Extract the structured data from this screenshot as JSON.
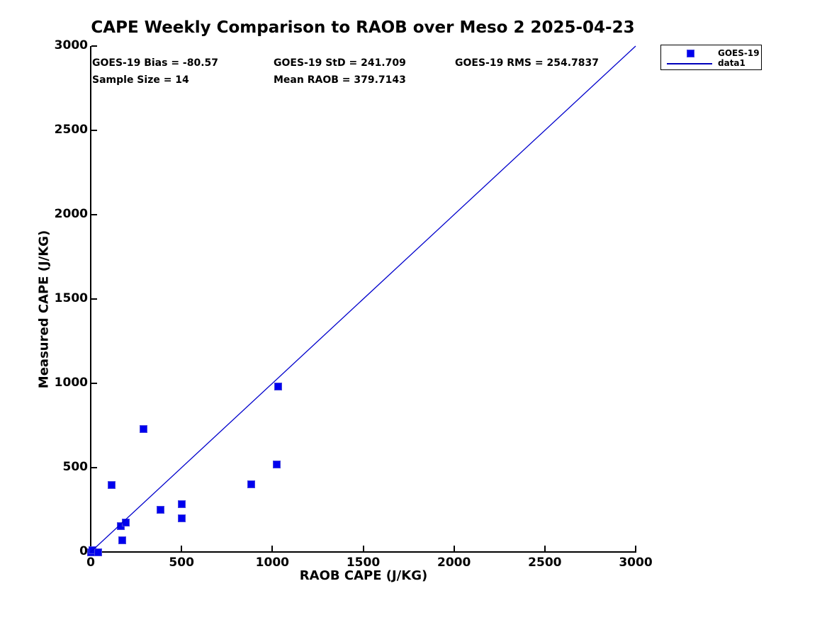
{
  "figure": {
    "title": "CAPE Weekly Comparison to RAOB over Meso 2 2025-04-23",
    "stats": {
      "bias": "GOES-19 Bias = -80.57",
      "std": "GOES-19 StD = 241.709",
      "rms": "GOES-19 RMS = 254.7837",
      "sample_size": "Sample Size = 14",
      "mean_raob": "Mean RAOB = 379.7143"
    },
    "legend": {
      "items": [
        {
          "label": "GOES-19",
          "symbol": "square-marker"
        },
        {
          "label": "data1",
          "symbol": "line"
        }
      ]
    }
  },
  "chart_data": {
    "type": "scatter",
    "title": "CAPE Weekly Comparison to RAOB over Meso 2 2025-04-23",
    "xlabel": "RAOB CAPE (J/KG)",
    "ylabel": "Measured CAPE (J/KG)",
    "xlim": [
      0,
      3000
    ],
    "ylim": [
      0,
      3000
    ],
    "x_ticks": [
      0,
      500,
      1000,
      1500,
      2000,
      2500,
      3000
    ],
    "y_ticks": [
      0,
      500,
      1000,
      1500,
      2000,
      2500,
      3000
    ],
    "grid": false,
    "legend_position": "outside-top-right",
    "series": [
      {
        "name": "GOES-19",
        "type": "scatter",
        "marker": "square",
        "color": "#0000EE",
        "points": [
          [
            0,
            0
          ],
          [
            10,
            10
          ],
          [
            40,
            0
          ],
          [
            115,
            395
          ],
          [
            165,
            155
          ],
          [
            195,
            175
          ],
          [
            175,
            70
          ],
          [
            290,
            730
          ],
          [
            385,
            250
          ],
          [
            500,
            285
          ],
          [
            500,
            200
          ],
          [
            885,
            400
          ],
          [
            1025,
            520
          ],
          [
            1030,
            980
          ]
        ]
      },
      {
        "name": "data1",
        "type": "line",
        "color": "#0000CC",
        "points": [
          [
            0,
            0
          ],
          [
            3000,
            3000
          ]
        ]
      }
    ],
    "annotations": [
      "GOES-19 Bias = -80.57",
      "GOES-19 StD = 241.709",
      "GOES-19 RMS = 254.7837",
      "Sample Size = 14",
      "Mean RAOB = 379.7143"
    ]
  },
  "colors": {
    "marker": "#0000EE",
    "line": "#0000CC",
    "axis": "#000000",
    "text": "#000000",
    "background": "#FFFFFF"
  }
}
